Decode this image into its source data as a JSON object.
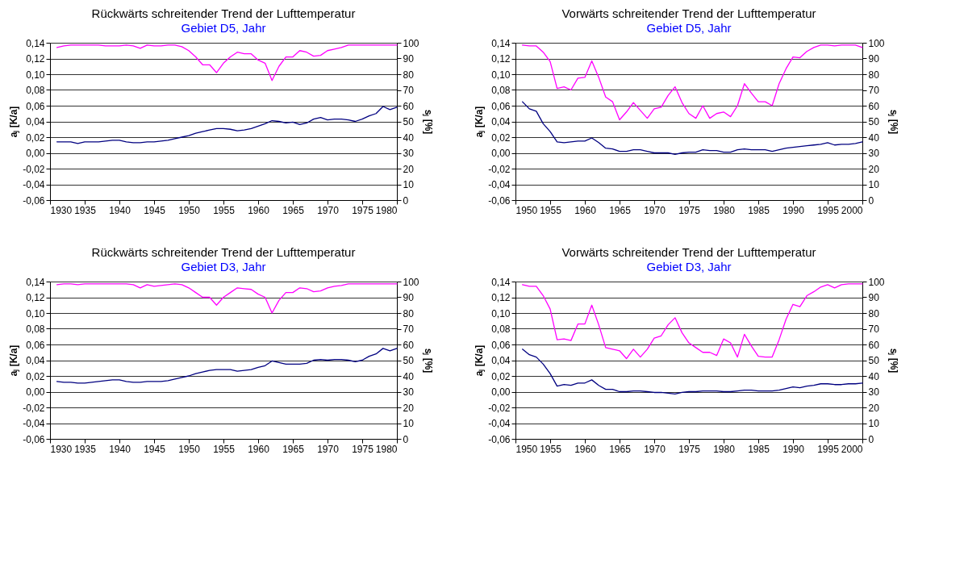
{
  "chart_data": [
    {
      "type": "line",
      "title": "Rückwärts schreitender Trend der Lufttemperatur",
      "subtitle": "Gebiet D5, Jahr",
      "ylabel": "aⱼ [K/a]",
      "y2label": "sⱼ [%]",
      "grid": "y",
      "x": [
        1931,
        1932,
        1933,
        1934,
        1935,
        1936,
        1937,
        1938,
        1939,
        1940,
        1941,
        1942,
        1943,
        1944,
        1945,
        1946,
        1947,
        1948,
        1949,
        1950,
        1951,
        1952,
        1953,
        1954,
        1955,
        1956,
        1957,
        1958,
        1959,
        1960,
        1961,
        1962,
        1963,
        1964,
        1965,
        1966,
        1967,
        1968,
        1969,
        1970,
        1971,
        1972,
        1973,
        1974,
        1975,
        1976,
        1977,
        1978,
        1979,
        1980
      ],
      "xlim": [
        1930,
        1980
      ],
      "xticks": [
        1930,
        1935,
        1940,
        1945,
        1950,
        1955,
        1960,
        1965,
        1970,
        1975,
        1980
      ],
      "ylim": [
        -0.06,
        0.14
      ],
      "yticks": [
        {
          "value": -0.06,
          "label": "-0,06"
        },
        {
          "value": -0.04,
          "label": "-0,04"
        },
        {
          "value": -0.02,
          "label": "-0,02"
        },
        {
          "value": 0,
          "label": "0,00"
        },
        {
          "value": 0.02,
          "label": "0,02"
        },
        {
          "value": 0.04,
          "label": "0,04"
        },
        {
          "value": 0.06,
          "label": "0,06"
        },
        {
          "value": 0.08,
          "label": "0,08"
        },
        {
          "value": 0.1,
          "label": "0,10"
        },
        {
          "value": 0.12,
          "label": "0,12"
        },
        {
          "value": 0.14,
          "label": "0,14"
        }
      ],
      "y2lim": [
        0,
        100
      ],
      "y2ticks": [
        0,
        10,
        20,
        30,
        40,
        50,
        60,
        70,
        80,
        90,
        100
      ],
      "series": [
        {
          "color": "#000080",
          "values": [
            0.014,
            0.014,
            0.014,
            0.012,
            0.014,
            0.014,
            0.014,
            0.015,
            0.016,
            0.016,
            0.014,
            0.013,
            0.013,
            0.014,
            0.014,
            0.015,
            0.016,
            0.018,
            0.02,
            0.022,
            0.025,
            0.027,
            0.029,
            0.031,
            0.031,
            0.03,
            0.028,
            0.029,
            0.031,
            0.034,
            0.037,
            0.041,
            0.04,
            0.038,
            0.039,
            0.036,
            0.038,
            0.043,
            0.045,
            0.042,
            0.043,
            0.043,
            0.042,
            0.04,
            0.043,
            0.047,
            0.05,
            0.059,
            0.055,
            0.058
          ]
        },
        {
          "color": "#ff00ff",
          "axis": "y2",
          "values": [
            97,
            98,
            98.5,
            98.5,
            98.5,
            98.5,
            98.5,
            98,
            98,
            98,
            98.5,
            98,
            96.5,
            98.5,
            98,
            98,
            98.5,
            98.5,
            97.5,
            95,
            91,
            86,
            86,
            81,
            87,
            91,
            94,
            93,
            93,
            89,
            87,
            76,
            85,
            91,
            91,
            95,
            94,
            91.5,
            92,
            95,
            96,
            97,
            98.5,
            98.5,
            98.5,
            98.5,
            98.5,
            98.5,
            98.5,
            98.5
          ]
        }
      ]
    },
    {
      "type": "line",
      "title": "Vorwärts schreitender Trend der Lufttemperatur",
      "subtitle": "Gebiet D5, Jahr",
      "ylabel": "aⱼ [K/a]",
      "y2label": "sⱼ [%]",
      "grid": "y",
      "x": [
        1951,
        1952,
        1953,
        1954,
        1955,
        1956,
        1957,
        1958,
        1959,
        1960,
        1961,
        1962,
        1963,
        1964,
        1965,
        1966,
        1967,
        1968,
        1969,
        1970,
        1971,
        1972,
        1973,
        1974,
        1975,
        1976,
        1977,
        1978,
        1979,
        1980,
        1981,
        1982,
        1983,
        1984,
        1985,
        1986,
        1987,
        1988,
        1989,
        1990,
        1991,
        1992,
        1993,
        1994,
        1995,
        1996,
        1997,
        1998,
        1999,
        2000
      ],
      "xlim": [
        1950,
        2000
      ],
      "xticks": [
        1950,
        1955,
        1960,
        1965,
        1970,
        1975,
        1980,
        1985,
        1990,
        1995,
        2000
      ],
      "ylim": [
        -0.06,
        0.14
      ],
      "yticks": [
        {
          "value": -0.06,
          "label": "-0,06"
        },
        {
          "value": -0.04,
          "label": "-0,04"
        },
        {
          "value": -0.02,
          "label": "-0,02"
        },
        {
          "value": 0,
          "label": "0,00"
        },
        {
          "value": 0.02,
          "label": "0,02"
        },
        {
          "value": 0.04,
          "label": "0,04"
        },
        {
          "value": 0.06,
          "label": "0,06"
        },
        {
          "value": 0.08,
          "label": "0,08"
        },
        {
          "value": 0.1,
          "label": "0,10"
        },
        {
          "value": 0.12,
          "label": "0,12"
        },
        {
          "value": 0.14,
          "label": "0,14"
        }
      ],
      "y2lim": [
        0,
        100
      ],
      "y2ticks": [
        0,
        10,
        20,
        30,
        40,
        50,
        60,
        70,
        80,
        90,
        100
      ],
      "series": [
        {
          "color": "#000080",
          "values": [
            0.065,
            0.056,
            0.053,
            0.037,
            0.027,
            0.014,
            0.013,
            0.014,
            0.015,
            0.015,
            0.019,
            0.013,
            0.006,
            0.005,
            0.002,
            0.002,
            0.004,
            0.004,
            0.002,
            0.0,
            0.0,
            0.0,
            -0.002,
            0.0,
            0.001,
            0.001,
            0.004,
            0.003,
            0.003,
            0.001,
            0.001,
            0.004,
            0.005,
            0.004,
            0.004,
            0.004,
            0.002,
            0.004,
            0.006,
            0.007,
            0.008,
            0.009,
            0.01,
            0.011,
            0.013,
            0.01,
            0.011,
            0.011,
            0.012,
            0.014
          ]
        },
        {
          "color": "#ff00ff",
          "axis": "y2",
          "values": [
            98.5,
            98,
            98,
            94,
            88,
            71,
            72,
            70,
            77.5,
            78,
            88.5,
            78,
            65.5,
            62.5,
            51,
            56,
            62,
            57,
            52,
            58,
            59,
            66.5,
            72,
            62,
            55,
            52,
            60,
            52,
            55,
            56,
            53,
            60,
            74,
            68,
            62.5,
            62.5,
            60,
            74,
            83.5,
            91,
            90.5,
            94.5,
            97,
            98.5,
            98.5,
            98,
            98.5,
            98.5,
            98.5,
            97
          ]
        }
      ]
    },
    {
      "type": "line",
      "title": "Rückwärts schreitender Trend der Lufttemperatur",
      "subtitle": "Gebiet D3, Jahr",
      "ylabel": "aⱼ [K/a]",
      "y2label": "sⱼ [%]",
      "grid": "y",
      "x": [
        1931,
        1932,
        1933,
        1934,
        1935,
        1936,
        1937,
        1938,
        1939,
        1940,
        1941,
        1942,
        1943,
        1944,
        1945,
        1946,
        1947,
        1948,
        1949,
        1950,
        1951,
        1952,
        1953,
        1954,
        1955,
        1956,
        1957,
        1958,
        1959,
        1960,
        1961,
        1962,
        1963,
        1964,
        1965,
        1966,
        1967,
        1968,
        1969,
        1970,
        1971,
        1972,
        1973,
        1974,
        1975,
        1976,
        1977,
        1978,
        1979,
        1980
      ],
      "xlim": [
        1930,
        1980
      ],
      "xticks": [
        1930,
        1935,
        1940,
        1945,
        1950,
        1955,
        1960,
        1965,
        1970,
        1975,
        1980
      ],
      "ylim": [
        -0.06,
        0.14
      ],
      "yticks": [
        {
          "value": -0.06,
          "label": "-0,06"
        },
        {
          "value": -0.04,
          "label": "-0,04"
        },
        {
          "value": -0.02,
          "label": "-0,02"
        },
        {
          "value": 0,
          "label": "0,00"
        },
        {
          "value": 0.02,
          "label": "0,02"
        },
        {
          "value": 0.04,
          "label": "0,04"
        },
        {
          "value": 0.06,
          "label": "0,06"
        },
        {
          "value": 0.08,
          "label": "0,08"
        },
        {
          "value": 0.1,
          "label": "0,10"
        },
        {
          "value": 0.12,
          "label": "0,12"
        },
        {
          "value": 0.14,
          "label": "0,14"
        }
      ],
      "y2lim": [
        0,
        100
      ],
      "y2ticks": [
        0,
        10,
        20,
        30,
        40,
        50,
        60,
        70,
        80,
        90,
        100
      ],
      "series": [
        {
          "color": "#000080",
          "values": [
            0.013,
            0.012,
            0.012,
            0.011,
            0.011,
            0.012,
            0.013,
            0.014,
            0.015,
            0.015,
            0.013,
            0.012,
            0.012,
            0.013,
            0.013,
            0.013,
            0.014,
            0.016,
            0.018,
            0.02,
            0.023,
            0.025,
            0.027,
            0.028,
            0.028,
            0.028,
            0.026,
            0.027,
            0.028,
            0.031,
            0.033,
            0.039,
            0.037,
            0.035,
            0.035,
            0.035,
            0.036,
            0.04,
            0.041,
            0.04,
            0.041,
            0.041,
            0.04,
            0.038,
            0.04,
            0.045,
            0.048,
            0.055,
            0.052,
            0.055
          ]
        },
        {
          "color": "#ff00ff",
          "axis": "y2",
          "values": [
            98,
            98.5,
            98.5,
            98,
            98.5,
            98.5,
            98.5,
            98.5,
            98.5,
            98.5,
            98.5,
            98,
            96,
            98,
            97,
            97.5,
            98,
            98.5,
            98,
            96,
            93,
            90,
            90,
            85,
            90,
            93,
            96,
            95.5,
            95,
            92,
            90,
            80,
            88,
            93,
            93,
            96,
            95.5,
            93.5,
            94,
            96,
            97,
            97.5,
            98.5,
            98.5,
            98.5,
            98.5,
            98.5,
            98.5,
            98.5,
            98.5
          ]
        }
      ]
    },
    {
      "type": "line",
      "title": "Vorwärts schreitender Trend der Lufttemperatur",
      "subtitle": "Gebiet D3, Jahr",
      "ylabel": "aⱼ [K/a]",
      "y2label": "sⱼ [%]",
      "grid": "y",
      "x": [
        1951,
        1952,
        1953,
        1954,
        1955,
        1956,
        1957,
        1958,
        1959,
        1960,
        1961,
        1962,
        1963,
        1964,
        1965,
        1966,
        1967,
        1968,
        1969,
        1970,
        1971,
        1972,
        1973,
        1974,
        1975,
        1976,
        1977,
        1978,
        1979,
        1980,
        1981,
        1982,
        1983,
        1984,
        1985,
        1986,
        1987,
        1988,
        1989,
        1990,
        1991,
        1992,
        1993,
        1994,
        1995,
        1996,
        1997,
        1998,
        1999,
        2000
      ],
      "xlim": [
        1950,
        2000
      ],
      "xticks": [
        1950,
        1955,
        1960,
        1965,
        1970,
        1975,
        1980,
        1985,
        1990,
        1995,
        2000
      ],
      "ylim": [
        -0.06,
        0.14
      ],
      "yticks": [
        {
          "value": -0.06,
          "label": "-0,06"
        },
        {
          "value": -0.04,
          "label": "-0,04"
        },
        {
          "value": -0.02,
          "label": "-0,02"
        },
        {
          "value": 0,
          "label": "0,00"
        },
        {
          "value": 0.02,
          "label": "0,02"
        },
        {
          "value": 0.04,
          "label": "0,04"
        },
        {
          "value": 0.06,
          "label": "0,06"
        },
        {
          "value": 0.08,
          "label": "0,08"
        },
        {
          "value": 0.1,
          "label": "0,10"
        },
        {
          "value": 0.12,
          "label": "0,12"
        },
        {
          "value": 0.14,
          "label": "0,14"
        }
      ],
      "y2lim": [
        0,
        100
      ],
      "y2ticks": [
        0,
        10,
        20,
        30,
        40,
        50,
        60,
        70,
        80,
        90,
        100
      ],
      "series": [
        {
          "color": "#000080",
          "values": [
            0.054,
            0.047,
            0.044,
            0.035,
            0.023,
            0.007,
            0.009,
            0.008,
            0.011,
            0.011,
            0.015,
            0.008,
            0.003,
            0.003,
            0.0,
            0.0,
            0.001,
            0.001,
            0.0,
            -0.001,
            -0.001,
            -0.002,
            -0.003,
            -0.001,
            0.0,
            0.0,
            0.001,
            0.001,
            0.001,
            0.0,
            0.0,
            0.001,
            0.002,
            0.002,
            0.001,
            0.001,
            0.001,
            0.002,
            0.004,
            0.006,
            0.005,
            0.007,
            0.008,
            0.01,
            0.01,
            0.009,
            0.009,
            0.01,
            0.01,
            0.011
          ]
        },
        {
          "color": "#ff00ff",
          "axis": "y2",
          "values": [
            98,
            97,
            97,
            91,
            82.5,
            63,
            63.5,
            62.5,
            73,
            73,
            85,
            72.5,
            58,
            57,
            56,
            51,
            57,
            52,
            57,
            64,
            65.5,
            72.5,
            77,
            67.5,
            61,
            58,
            55,
            55,
            53,
            63.5,
            61,
            52,
            66.5,
            59,
            52.5,
            52,
            52,
            63,
            76,
            85.5,
            84,
            91,
            93.5,
            96.5,
            98,
            96,
            98,
            98.5,
            98.5,
            98.5
          ]
        }
      ]
    }
  ]
}
